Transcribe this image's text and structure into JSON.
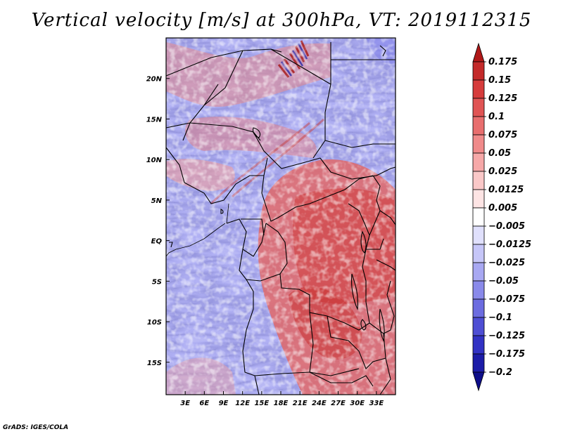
{
  "title": "Vertical velocity [m/s] at 300hPa, VT: 2019112315",
  "credit": "GrADS: IGES/COLA",
  "map": {
    "lon_range": [
      0,
      36
    ],
    "lat_range": [
      -19,
      25
    ],
    "lat_ticks": [
      "20N",
      "15N",
      "10N",
      "5N",
      "EQ",
      "5S",
      "10S",
      "15S"
    ],
    "lat_tick_values": [
      20,
      15,
      10,
      5,
      0,
      -5,
      -10,
      -15
    ],
    "lon_ticks": [
      "3E",
      "6E",
      "9E",
      "12E",
      "15E",
      "18E",
      "21E",
      "24E",
      "27E",
      "30E",
      "33E"
    ],
    "lon_tick_values": [
      3,
      6,
      9,
      12,
      15,
      18,
      21,
      24,
      27,
      30,
      33
    ]
  },
  "colorbar": {
    "labels": [
      "0.175",
      "0.15",
      "0.125",
      "0.1",
      "0.075",
      "0.05",
      "0.025",
      "0.0125",
      "0.005",
      "−0.005",
      "−0.0125",
      "−0.025",
      "−0.05",
      "−0.075",
      "−0.1",
      "−0.125",
      "−0.175",
      "−0.2"
    ],
    "colors": [
      "#b01818",
      "#c42a2a",
      "#d63c3c",
      "#e05454",
      "#e86e6e",
      "#f08a8a",
      "#f6a8a8",
      "#fac8c8",
      "#fde4e4",
      "#ffffff",
      "#e0e0fc",
      "#c6c6f8",
      "#a8a8f2",
      "#8a8aea",
      "#6c6ce0",
      "#4e4ed4",
      "#3232c4",
      "#1c1ca8",
      "#0e0e8a"
    ]
  }
}
